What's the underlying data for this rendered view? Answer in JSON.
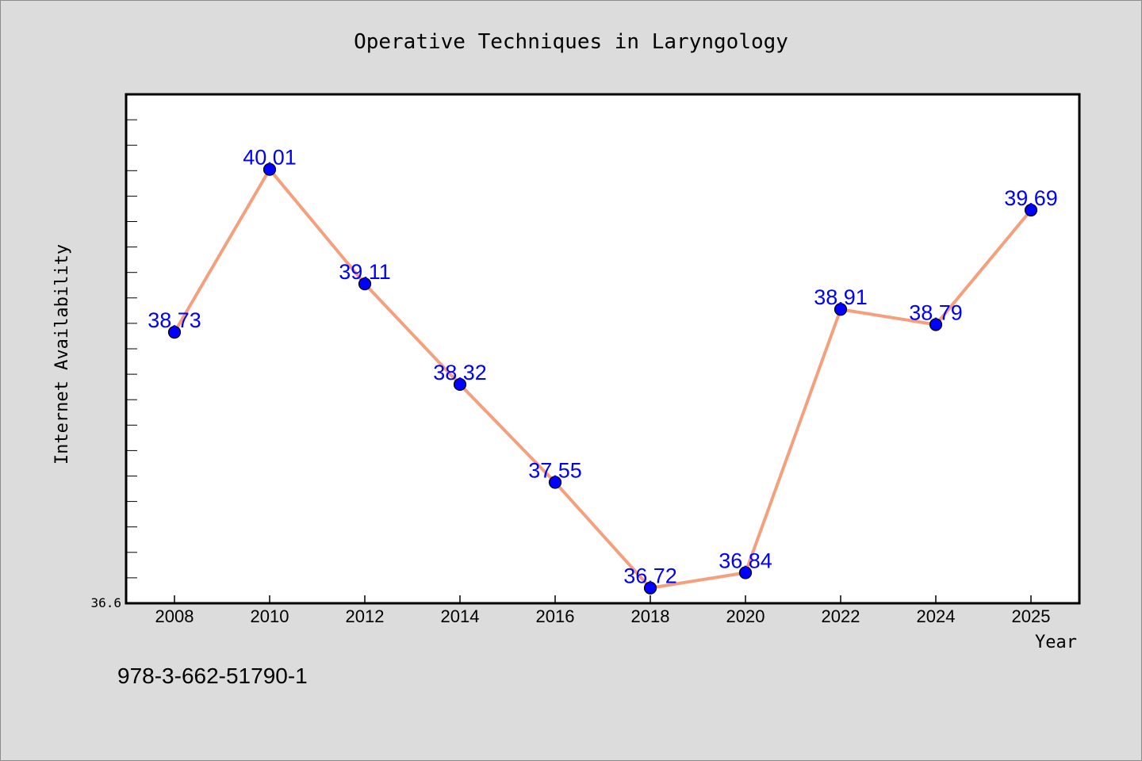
{
  "chart_data": {
    "type": "line",
    "title": "Operative Techniques in Laryngology",
    "xlabel": "Year",
    "ylabel": "Internet Availability",
    "x": [
      "2008",
      "2010",
      "2012",
      "2014",
      "2016",
      "2018",
      "2020",
      "2022",
      "2024",
      "2025"
    ],
    "series": [
      {
        "values": [
          38.73,
          40.01,
          39.11,
          38.32,
          37.55,
          36.72,
          36.84,
          38.91,
          38.79,
          39.69
        ],
        "labels": [
          "38.73",
          "40.01",
          "39.11",
          "38.32",
          "37.55",
          "36.72",
          "36.84",
          "38.91",
          "38.79",
          "39.69"
        ],
        "line_color": "#f4a07e",
        "marker_color": "#0000ff"
      }
    ],
    "ylim": [
      36.6,
      40.6
    ],
    "y_tick_labels": [
      "36.6"
    ],
    "grid": false,
    "legend": "none"
  },
  "footer": {
    "isbn": "978-3-662-51790-1"
  },
  "colors": {
    "background": "#dcdcdc",
    "plot_background": "#ffffff",
    "line": "#f4a07e",
    "marker": "#0000ff",
    "data_label": "#0000ff"
  }
}
